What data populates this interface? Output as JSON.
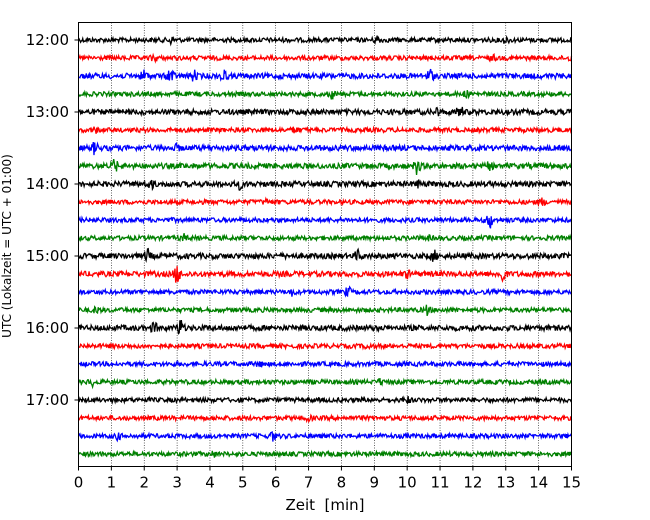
{
  "chart_data": {
    "type": "line",
    "title": "",
    "xlabel": "Zeit  [min]",
    "ylabel": "UTC (Lokalzeit = UTC + 01:00)",
    "xlim": [
      0,
      15
    ],
    "x_ticks": [
      0,
      1,
      2,
      3,
      4,
      5,
      6,
      7,
      8,
      9,
      10,
      11,
      12,
      13,
      14,
      15
    ],
    "x_tick_labels": [
      "0",
      "1",
      "2",
      "3",
      "4",
      "5",
      "6",
      "7",
      "8",
      "9",
      "10",
      "11",
      "12",
      "13",
      "14",
      "15"
    ],
    "y_tick_labels": [
      "12:00",
      "13:00",
      "14:00",
      "15:00",
      "16:00",
      "17:00"
    ],
    "y_tick_rows": [
      0,
      4,
      8,
      12,
      16,
      20
    ],
    "row_interval_minutes": 15,
    "grid": {
      "x_dotted": true,
      "y": false
    },
    "colors": [
      "#000000",
      "#ff0000",
      "#0000ff",
      "#008000"
    ],
    "series": [
      {
        "start": "12:00",
        "amplitude": 0.25,
        "events": [
          {
            "x": 2.8,
            "amp": 0.3
          },
          {
            "x": 9.1,
            "amp": 0.45
          },
          {
            "x": 13.0,
            "amp": 0.3
          }
        ]
      },
      {
        "start": "12:15",
        "amplitude": 0.25,
        "events": [
          {
            "x": 2.3,
            "amp": 0.35
          },
          {
            "x": 12.6,
            "amp": 0.25
          },
          {
            "x": 15.0,
            "amp": 0.3
          }
        ]
      },
      {
        "start": "12:30",
        "amplitude": 0.3,
        "events": [
          {
            "x": 2.0,
            "amp": 0.55
          },
          {
            "x": 2.8,
            "amp": 0.9
          },
          {
            "x": 3.5,
            "amp": 0.5
          },
          {
            "x": 4.4,
            "amp": 0.7
          },
          {
            "x": 10.7,
            "amp": 0.7
          }
        ]
      },
      {
        "start": "12:45",
        "amplitude": 0.25,
        "events": [
          {
            "x": 7.7,
            "amp": 0.45
          },
          {
            "x": 11.8,
            "amp": 0.25
          }
        ]
      },
      {
        "start": "13:00",
        "amplitude": 0.3,
        "events": [
          {
            "x": 10.9,
            "amp": 0.35
          },
          {
            "x": 11.6,
            "amp": 0.7
          }
        ]
      },
      {
        "start": "13:15",
        "amplitude": 0.25,
        "events": [
          {
            "x": 0.5,
            "amp": 0.25
          },
          {
            "x": 6.6,
            "amp": 0.3
          }
        ]
      },
      {
        "start": "13:30",
        "amplitude": 0.3,
        "events": [
          {
            "x": 0.5,
            "amp": 0.6
          },
          {
            "x": 3.0,
            "amp": 0.25
          }
        ]
      },
      {
        "start": "13:45",
        "amplitude": 0.3,
        "events": [
          {
            "x": 1.1,
            "amp": 0.6
          },
          {
            "x": 10.3,
            "amp": 0.75
          },
          {
            "x": 12.5,
            "amp": 0.3
          }
        ]
      },
      {
        "start": "14:00",
        "amplitude": 0.3,
        "events": [
          {
            "x": 2.2,
            "amp": 0.4
          },
          {
            "x": 4.9,
            "amp": 0.4
          },
          {
            "x": 10.3,
            "amp": 0.3
          }
        ]
      },
      {
        "start": "14:15",
        "amplitude": 0.25,
        "events": [
          {
            "x": 14.1,
            "amp": 0.35
          },
          {
            "x": 5.7,
            "amp": 0.25
          }
        ]
      },
      {
        "start": "14:30",
        "amplitude": 0.25,
        "events": [
          {
            "x": 12.5,
            "amp": 0.9
          }
        ]
      },
      {
        "start": "14:45",
        "amplitude": 0.25,
        "events": [
          {
            "x": 3.2,
            "amp": 0.3
          },
          {
            "x": 10.6,
            "amp": 0.25
          }
        ]
      },
      {
        "start": "15:00",
        "amplitude": 0.3,
        "events": [
          {
            "x": 2.1,
            "amp": 0.6
          },
          {
            "x": 8.5,
            "amp": 0.5
          },
          {
            "x": 10.8,
            "amp": 0.55
          }
        ]
      },
      {
        "start": "15:15",
        "amplitude": 0.3,
        "events": [
          {
            "x": 3.0,
            "amp": 1.0
          },
          {
            "x": 12.9,
            "amp": 0.85
          },
          {
            "x": 10.0,
            "amp": 0.3
          }
        ]
      },
      {
        "start": "15:30",
        "amplitude": 0.25,
        "events": [
          {
            "x": 6.5,
            "amp": 0.3
          },
          {
            "x": 8.2,
            "amp": 0.45
          }
        ]
      },
      {
        "start": "15:45",
        "amplitude": 0.25,
        "events": [
          {
            "x": 0.55,
            "amp": 0.3
          },
          {
            "x": 10.6,
            "amp": 0.45
          }
        ]
      },
      {
        "start": "16:00",
        "amplitude": 0.3,
        "events": [
          {
            "x": 2.3,
            "amp": 0.5
          },
          {
            "x": 3.1,
            "amp": 0.9
          }
        ]
      },
      {
        "start": "16:15",
        "amplitude": 0.25,
        "events": [
          {
            "x": 8.8,
            "amp": 0.25
          }
        ]
      },
      {
        "start": "16:30",
        "amplitude": 0.25,
        "events": [
          {
            "x": 5.5,
            "amp": 0.25
          }
        ]
      },
      {
        "start": "16:45",
        "amplitude": 0.25,
        "events": [
          {
            "x": 0.4,
            "amp": 0.35
          },
          {
            "x": 9.2,
            "amp": 0.25
          }
        ]
      },
      {
        "start": "17:00",
        "amplitude": 0.25,
        "events": [
          {
            "x": 10.0,
            "amp": 0.3
          }
        ]
      },
      {
        "start": "17:15",
        "amplitude": 0.25,
        "events": [
          {
            "x": 7.0,
            "amp": 0.25
          }
        ]
      },
      {
        "start": "17:30",
        "amplitude": 0.25,
        "events": [
          {
            "x": 1.2,
            "amp": 0.3
          },
          {
            "x": 5.9,
            "amp": 0.5
          }
        ]
      },
      {
        "start": "17:45",
        "amplitude": 0.25,
        "events": [
          {
            "x": 4.1,
            "amp": 0.25
          }
        ]
      }
    ]
  }
}
